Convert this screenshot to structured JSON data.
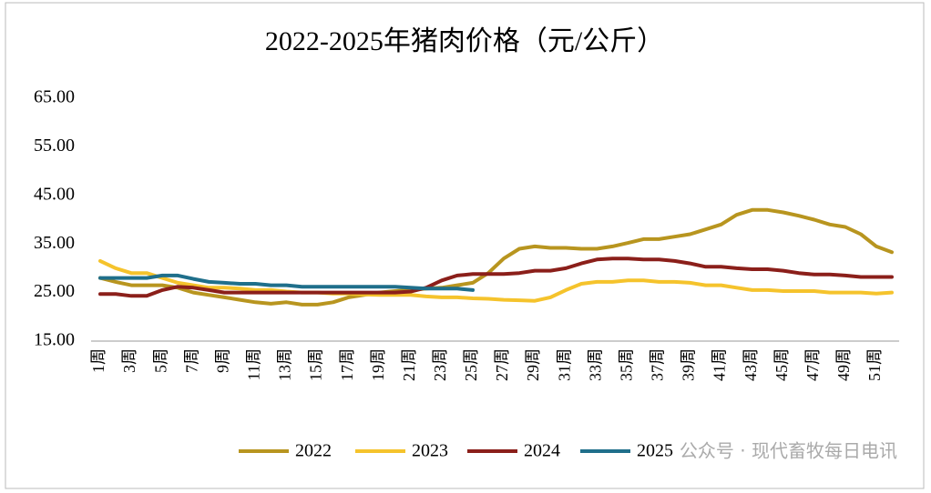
{
  "chart_data": {
    "type": "line",
    "title": "2022-2025年猪肉价格（元/公斤）",
    "categories": [
      "1周",
      null,
      "3周",
      null,
      "5周",
      null,
      "7周",
      null,
      "9周",
      null,
      "11周",
      null,
      "13周",
      null,
      "15周",
      null,
      "17周",
      null,
      "19周",
      null,
      "21周",
      null,
      "23周",
      null,
      "25周",
      null,
      "27周",
      null,
      "29周",
      null,
      "31周",
      null,
      "33周",
      null,
      "35周",
      null,
      "37周",
      null,
      "39周",
      null,
      "41周",
      null,
      "43周",
      null,
      "45周",
      null,
      "47周",
      null,
      "49周",
      null,
      "51周",
      null
    ],
    "series": [
      {
        "name": "2022",
        "color": "#b8951f",
        "values": [
          28,
          27.2,
          26.5,
          26.5,
          26.5,
          26,
          25,
          24.5,
          24,
          23.5,
          23,
          22.7,
          23,
          22.5,
          22.5,
          23,
          24,
          24.5,
          25,
          25.3,
          25.5,
          25.8,
          26,
          26.5,
          27,
          29,
          32,
          34,
          34.5,
          34.2,
          34.2,
          34,
          34,
          34.5,
          35.2,
          36,
          36,
          36.5,
          37,
          38,
          39,
          41,
          42,
          42,
          41.5,
          40.8,
          40,
          39,
          38.5,
          37,
          34.5,
          33.3
        ]
      },
      {
        "name": "2023",
        "color": "#f5c32c",
        "values": [
          31.5,
          30,
          29,
          29,
          28,
          27,
          26.5,
          26,
          26,
          25.8,
          25.5,
          25.5,
          25.2,
          25,
          25,
          24.8,
          24.8,
          24.6,
          24.5,
          24.5,
          24.5,
          24.2,
          24,
          24,
          23.8,
          23.7,
          23.5,
          23.4,
          23.3,
          24,
          25.5,
          26.8,
          27.2,
          27.2,
          27.5,
          27.5,
          27.2,
          27.2,
          27,
          26.5,
          26.5,
          26,
          25.5,
          25.5,
          25.3,
          25.3,
          25.3,
          25,
          25,
          25,
          24.8,
          25
        ]
      },
      {
        "name": "2024",
        "color": "#8b1f1a",
        "values": [
          24.7,
          24.7,
          24.3,
          24.3,
          25.5,
          26.2,
          26,
          25.5,
          25,
          25,
          25,
          25,
          25,
          25,
          25,
          25,
          25,
          25,
          25,
          25,
          25.2,
          26,
          27.5,
          28.5,
          28.8,
          28.8,
          28.8,
          29,
          29.5,
          29.5,
          30,
          31,
          31.8,
          32,
          32,
          31.8,
          31.8,
          31.5,
          31,
          30.3,
          30.3,
          30,
          29.8,
          29.8,
          29.5,
          29,
          28.7,
          28.7,
          28.5,
          28.2,
          28.2,
          28.2
        ]
      },
      {
        "name": "2025",
        "color": "#1f6f8b",
        "values": [
          28,
          28,
          28,
          28,
          28.5,
          28.5,
          27.8,
          27.2,
          27,
          26.8,
          26.8,
          26.5,
          26.5,
          26.2,
          26.2,
          26.2,
          26.2,
          26.2,
          26.2,
          26.2,
          26,
          25.8,
          25.8,
          25.8,
          25.5,
          null,
          null,
          null,
          null,
          null,
          null,
          null,
          null,
          null,
          null,
          null,
          null,
          null,
          null,
          null,
          null,
          null,
          null,
          null,
          null,
          null,
          null,
          null,
          null,
          null,
          null,
          null
        ]
      }
    ],
    "ylim": [
      15,
      65
    ],
    "yticks": [
      {
        "value": 15,
        "label": "15.00"
      },
      {
        "value": 25,
        "label": "25.00"
      },
      {
        "value": 35,
        "label": "35.00"
      },
      {
        "value": 45,
        "label": "45.00"
      },
      {
        "value": 55,
        "label": "55.00"
      },
      {
        "value": 65,
        "label": "65.00"
      }
    ],
    "legend": "bottom",
    "watermark": "公众号 · 现代畜牧每日电讯"
  }
}
